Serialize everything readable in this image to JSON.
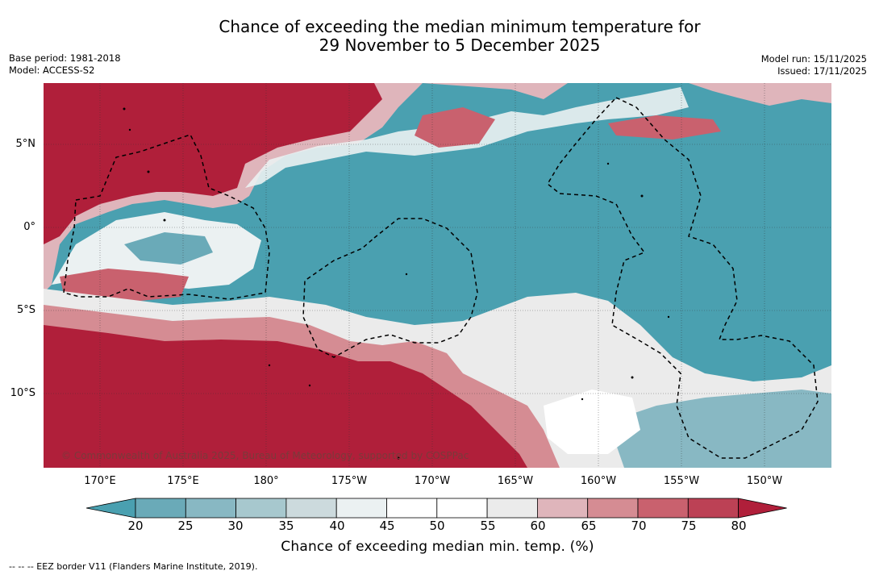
{
  "title_line1": "Chance of exceeding the median minimum temperature for",
  "title_line2": "29 November to 5 December 2025",
  "base_period": "Base period: 1981-2018",
  "model": "Model: ACCESS-S2",
  "model_run": "Model run: 15/11/2025",
  "issued": "Issued: 17/11/2025",
  "lat_labels": [
    "5°N",
    "0°",
    "5°S",
    "10°S"
  ],
  "lon_labels": [
    "170°E",
    "175°E",
    "180°",
    "175°W",
    "170°W",
    "165°W",
    "160°W",
    "155°W",
    "150°W"
  ],
  "copyright": "© Commonwealth of Australia 2025, Bureau of Meteorology, supported by COSPPac",
  "colorbar": {
    "ticks": [
      "20",
      "25",
      "30",
      "35",
      "40",
      "45",
      "50",
      "55",
      "60",
      "65",
      "70",
      "75",
      "80"
    ],
    "colors": [
      "#4aa0b0",
      "#6aaab8",
      "#88b8c3",
      "#a7c8ce",
      "#ccdadd",
      "#ebf1f2",
      "#ffffff",
      "#ffffff",
      "#ebebeb",
      "#dfb5bb",
      "#d58c93",
      "#c9616e",
      "#bc4155",
      "#b01f3a"
    ],
    "label": "Chance of exceeding median min. temp. (%)"
  },
  "footnote": "--  --  -- EEZ border V11 (Flanders Marine Institute, 2019).",
  "map_colors": {
    "cool": "#4aa0b0",
    "warm": "#b01f3a",
    "neutral": "#ffffff"
  }
}
